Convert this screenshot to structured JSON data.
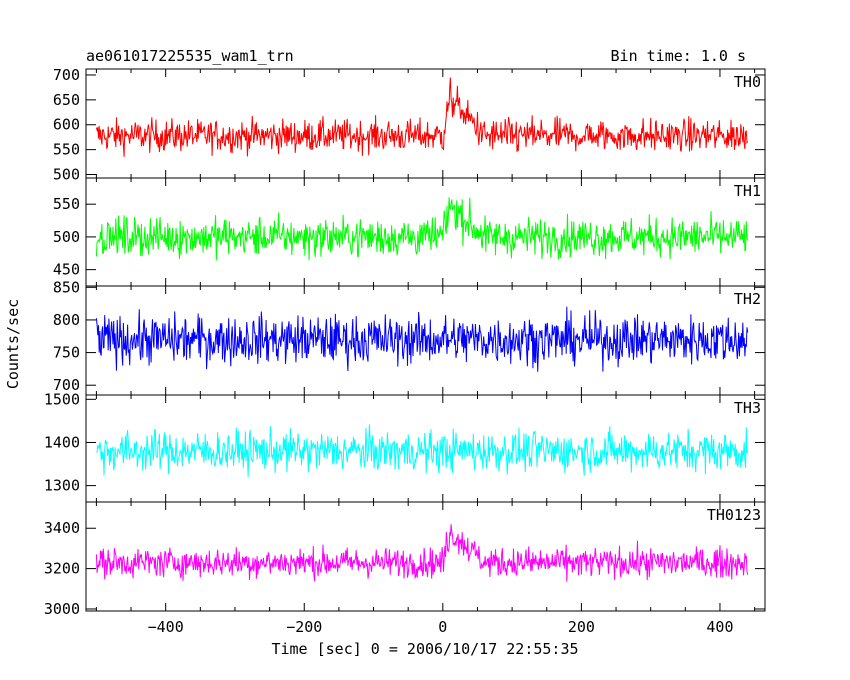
{
  "chart_data": {
    "type": "line",
    "title": "ae061017225535_wam1_trn",
    "subtitle": "Bin time: 1.0 s",
    "xlabel": "Time [sec] 0 = 2006/10/17 22:55:35",
    "ylabel": "Counts/sec",
    "xlim": [
      -515,
      465
    ],
    "x_ticks": [
      -400,
      -200,
      0,
      200,
      400
    ],
    "x_tick_labels": [
      "−400",
      "−200",
      "0",
      "200",
      "400"
    ],
    "x_range": [
      -500,
      440
    ],
    "grid": false,
    "panels": [
      {
        "name": "TH0",
        "color": "#ff0000",
        "ylim": [
          493,
          712
        ],
        "y_ticks": [
          500,
          550,
          600,
          650,
          700
        ],
        "baseline": 578,
        "noise": 42,
        "burst": {
          "start": 0,
          "peak": 10,
          "end": 60,
          "amplitude": 95
        }
      },
      {
        "name": "TH1",
        "color": "#00ff00",
        "ylim": [
          425,
          590
        ],
        "y_ticks": [
          450,
          500,
          550
        ],
        "baseline": 500,
        "noise": 38,
        "burst": {
          "start": 0,
          "peak": 10,
          "end": 60,
          "amplitude": 60
        }
      },
      {
        "name": "TH2",
        "color": "#0000ff",
        "ylim": [
          685,
          852
        ],
        "y_ticks": [
          700,
          750,
          800,
          850
        ],
        "baseline": 770,
        "noise": 48,
        "burst": null
      },
      {
        "name": "TH3",
        "color": "#00ffff",
        "ylim": [
          1262,
          1510
        ],
        "y_ticks": [
          1300,
          1400,
          1500
        ],
        "baseline": 1380,
        "noise": 60,
        "burst": null
      },
      {
        "name": "TH0123",
        "color": "#ff00ff",
        "ylim": [
          2990,
          3530
        ],
        "y_ticks": [
          3000,
          3200,
          3400
        ],
        "baseline": 3230,
        "noise": 95,
        "burst": {
          "start": 0,
          "peak": 10,
          "end": 60,
          "amplitude": 200
        }
      }
    ]
  }
}
